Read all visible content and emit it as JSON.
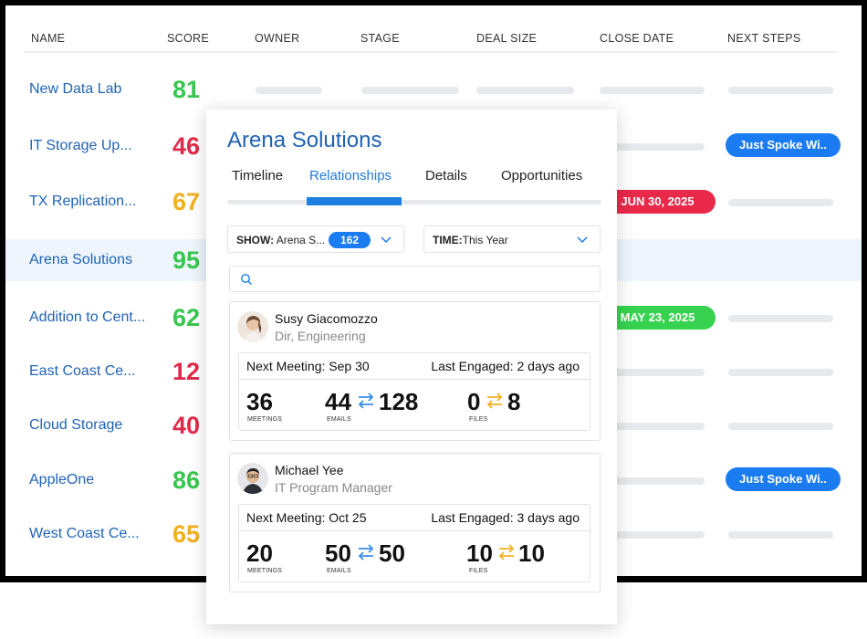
{
  "table": {
    "headers": [
      "NAME",
      "SCORE",
      "OWNER",
      "STAGE",
      "DEAL SIZE",
      "CLOSE DATE",
      "NEXT STEPS"
    ],
    "rows": [
      {
        "name": "New Data Lab",
        "score": "81",
        "score_color": "#37c74d"
      },
      {
        "name": "IT Storage Up...",
        "score": "46",
        "score_color": "#e12a4b",
        "next_steps": "Just Spoke Wi.."
      },
      {
        "name": "TX Replication...",
        "score": "67",
        "score_color": "#f2b01e",
        "close_date": "JUN 30, 2025",
        "close_date_color": "#e8294a"
      },
      {
        "name": "Arena Solutions",
        "score": "95",
        "score_color": "#37c74d",
        "selected": true
      },
      {
        "name": "Addition to Cent...",
        "score": "62",
        "score_color": "#37c74d",
        "close_date": "MAY 23, 2025",
        "close_date_color": "#37d24f"
      },
      {
        "name": "East Coast Ce...",
        "score": "12",
        "score_color": "#e12a4b"
      },
      {
        "name": "Cloud Storage",
        "score": "40",
        "score_color": "#e12a4b"
      },
      {
        "name": "AppleOne",
        "score": "86",
        "score_color": "#37c74d",
        "next_steps": "Just Spoke Wi.."
      },
      {
        "name": "West Coast Ce...",
        "score": "65",
        "score_color": "#f2b01e"
      }
    ]
  },
  "panel": {
    "title": "Arena Solutions",
    "tabs": [
      "Timeline",
      "Relationships",
      "Details",
      "Opportunities"
    ],
    "active_tab": "Relationships",
    "show_filter": {
      "label_bold": "SHOW:",
      "value": "Arena S...",
      "count": "162"
    },
    "time_filter": {
      "label_bold": "TIME:",
      "value": "This Year"
    },
    "search": {
      "placeholder": ""
    },
    "people": [
      {
        "name": "Susy Giacomozzo",
        "title": "Dir, Engineering",
        "next_meeting_label": "Next Meeting:",
        "next_meeting": "Sep 30",
        "last_engaged_label": "Last Engaged:",
        "last_engaged": "2 days ago",
        "meetings": "36",
        "emails_out": "44",
        "emails_in": "128",
        "files_out": "0",
        "files_in": "8",
        "meetings_caption": "MEETINGS",
        "emails_caption": "EMAILS",
        "files_caption": "FILES"
      },
      {
        "name": "Michael Yee",
        "title": "IT Program Manager",
        "next_meeting_label": "Next Meeting:",
        "next_meeting": "Oct 25",
        "last_engaged_label": "Last Engaged:",
        "last_engaged": "3 days ago",
        "meetings": "20",
        "emails_out": "50",
        "emails_in": "50",
        "files_out": "10",
        "files_in": "10",
        "meetings_caption": "MEETINGS",
        "emails_caption": "EMAILS",
        "files_caption": "FILES"
      }
    ]
  },
  "colors": {
    "accent": "#1a7cf0",
    "link": "#1f63b6",
    "email_arrow": "#3a8fe6",
    "files_arrow": "#f2b01e"
  }
}
